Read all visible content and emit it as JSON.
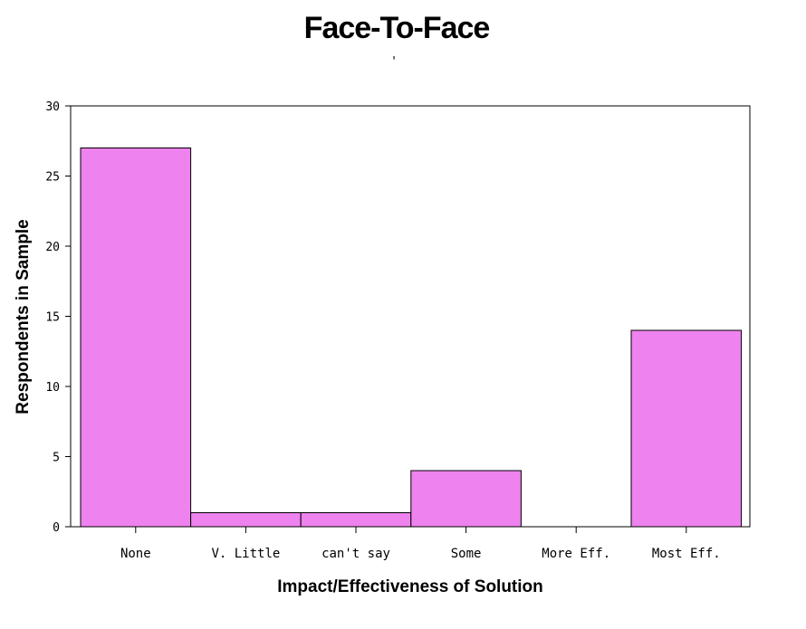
{
  "chart_data": {
    "type": "bar",
    "title": "Face-To-Face",
    "subtitle": "'",
    "xlabel": "Impact/Effectiveness of Solution",
    "ylabel": "Respondents in Sample",
    "categories": [
      "None",
      "V. Little",
      "can't say",
      "Some",
      "More Eff.",
      "Most Eff."
    ],
    "values": [
      27,
      1,
      1,
      4,
      0,
      14
    ],
    "ylim": [
      0,
      30
    ],
    "yticks": [
      0,
      5,
      10,
      15,
      20,
      25,
      30
    ],
    "grid": false,
    "bar_color": "#ee82ee",
    "bar_edge_color": "#000000"
  }
}
